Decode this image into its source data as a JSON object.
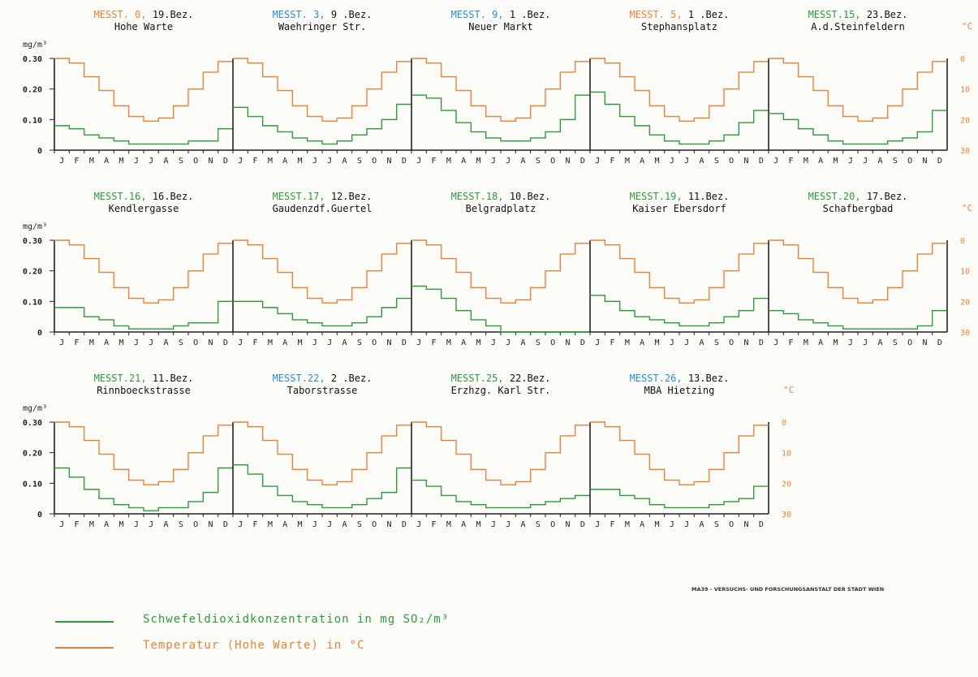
{
  "colors": {
    "axis": "#222222",
    "so2": "#2e9a3c",
    "temperature": "#e8823a",
    "label_dark": "#111111",
    "station_orange": "#e8823a",
    "station_blue": "#2a8fd0",
    "station_green": "#2e9a3c"
  },
  "left_axis_unit": "mg/m³",
  "right_axis_unit": "°C",
  "legend": {
    "so2_text": "Schwefeldioxidkonzentration in mg SO₂/m³",
    "temperature_text": "Temperatur (Hohe Warte) in °C"
  },
  "credit": "MA39 - VERSUCHS- UND FORSCHUNGSANSTALT DER STADT WIEN",
  "chart_data": {
    "type": "line",
    "step": true,
    "categories": [
      "J",
      "F",
      "M",
      "A",
      "M",
      "J",
      "J",
      "A",
      "S",
      "O",
      "N",
      "D"
    ],
    "left_axis": {
      "label": "mg/m³",
      "ticks": [
        "0",
        "0.10",
        "0.20",
        "0.30"
      ],
      "ylim": [
        0,
        0.3
      ]
    },
    "right_axis": {
      "label": "°C",
      "ticks": [
        "0",
        "10",
        "20",
        "30"
      ],
      "ylim": [
        30,
        0
      ],
      "inverted": true
    },
    "temperature_hohe_warte": [
      0.0,
      1.5,
      6.0,
      10.5,
      15.5,
      19.0,
      20.5,
      19.5,
      15.5,
      10.0,
      4.5,
      1.0
    ],
    "grid": false,
    "stations": [
      {
        "code": "MESST. 0,",
        "district": "19.Bez.",
        "name": "Hohe Warte",
        "code_color": "orange",
        "so2": [
          0.08,
          0.07,
          0.05,
          0.04,
          0.03,
          0.02,
          0.02,
          0.02,
          0.02,
          0.03,
          0.03,
          0.07
        ]
      },
      {
        "code": "MESST. 3,",
        "district": "9 .Bez.",
        "name": "Waehringer Str.",
        "code_color": "blue",
        "so2": [
          0.14,
          0.11,
          0.08,
          0.06,
          0.04,
          0.03,
          0.02,
          0.03,
          0.05,
          0.07,
          0.1,
          0.15
        ]
      },
      {
        "code": "MESST. 9,",
        "district": "1 .Bez.",
        "name": "Neuer Markt",
        "code_color": "blue",
        "so2": [
          0.18,
          0.17,
          0.13,
          0.09,
          0.06,
          0.04,
          0.03,
          0.03,
          0.04,
          0.06,
          0.1,
          0.18
        ]
      },
      {
        "code": "MESST. 5,",
        "district": "1 .Bez.",
        "name": "Stephansplatz",
        "code_color": "orange",
        "so2": [
          0.19,
          0.15,
          0.11,
          0.08,
          0.05,
          0.03,
          0.02,
          0.02,
          0.03,
          0.05,
          0.09,
          0.13
        ]
      },
      {
        "code": "MESST.15,",
        "district": "23.Bez.",
        "name": "A.d.Steinfeldern",
        "code_color": "green",
        "so2": [
          0.12,
          0.1,
          0.07,
          0.05,
          0.03,
          0.02,
          0.02,
          0.02,
          0.03,
          0.04,
          0.06,
          0.13
        ]
      },
      {
        "code": "MESST.16,",
        "district": "16.Bez.",
        "name": "Kendlergasse",
        "code_color": "green",
        "so2": [
          0.08,
          0.08,
          0.05,
          0.04,
          0.02,
          0.01,
          0.01,
          0.01,
          0.02,
          0.03,
          0.03,
          0.1
        ]
      },
      {
        "code": "MESST.17,",
        "district": "12.Bez.",
        "name": "Gaudenzdf.Guertel",
        "code_color": "green",
        "so2": [
          0.1,
          0.1,
          0.08,
          0.06,
          0.04,
          0.03,
          0.02,
          0.02,
          0.03,
          0.05,
          0.08,
          0.11
        ]
      },
      {
        "code": "MESST.18,",
        "district": "10.Bez.",
        "name": "Belgradplatz",
        "code_color": "green",
        "so2": [
          0.15,
          0.14,
          0.11,
          0.07,
          0.04,
          0.02,
          0.0,
          0.0,
          0.0,
          0.0,
          0.0,
          0.0
        ]
      },
      {
        "code": "MESST.19,",
        "district": "11.Bez.",
        "name": "Kaiser Ebersdorf",
        "code_color": "green",
        "so2": [
          0.12,
          0.1,
          0.07,
          0.05,
          0.04,
          0.03,
          0.02,
          0.02,
          0.03,
          0.05,
          0.07,
          0.11
        ]
      },
      {
        "code": "MESST.20,",
        "district": "17.Bez.",
        "name": "Schafbergbad",
        "code_color": "green",
        "so2": [
          0.07,
          0.06,
          0.04,
          0.03,
          0.02,
          0.01,
          0.01,
          0.01,
          0.01,
          0.01,
          0.02,
          0.07
        ]
      },
      {
        "code": "MESST.21,",
        "district": "11.Bez.",
        "name": "Rinnboeckstrasse",
        "code_color": "green",
        "so2": [
          0.15,
          0.12,
          0.08,
          0.05,
          0.03,
          0.02,
          0.01,
          0.02,
          0.02,
          0.04,
          0.07,
          0.15
        ]
      },
      {
        "code": "MESST.22,",
        "district": "2 .Bez.",
        "name": "Taborstrasse",
        "code_color": "blue",
        "so2": [
          0.16,
          0.13,
          0.09,
          0.06,
          0.04,
          0.03,
          0.02,
          0.02,
          0.03,
          0.05,
          0.07,
          0.15
        ]
      },
      {
        "code": "MESST.25,",
        "district": "22.Bez.",
        "name": "Erzhzg. Karl Str.",
        "code_color": "green",
        "so2": [
          0.11,
          0.09,
          0.06,
          0.04,
          0.03,
          0.02,
          0.02,
          0.02,
          0.03,
          0.04,
          0.05,
          0.06
        ]
      },
      {
        "code": "MESST.26,",
        "district": "13.Bez.",
        "name": "MBA Hietzing",
        "code_color": "blue",
        "so2": [
          0.08,
          0.08,
          0.06,
          0.05,
          0.03,
          0.02,
          0.02,
          0.02,
          0.03,
          0.04,
          0.05,
          0.09
        ]
      }
    ]
  }
}
